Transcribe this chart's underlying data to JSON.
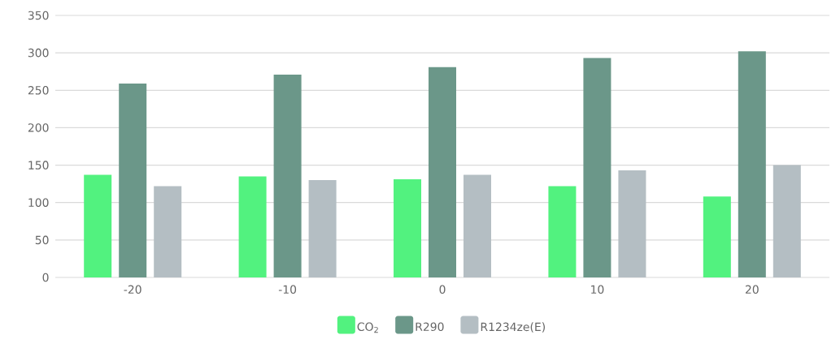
{
  "chart_data": {
    "type": "bar",
    "categories": [
      "-20",
      "-10",
      "0",
      "10",
      "20"
    ],
    "series": [
      {
        "name": "CO$_{2}$",
        "color": "#52f27f",
        "values": [
          137,
          135,
          131,
          122,
          108
        ]
      },
      {
        "name": "R290",
        "color": "#6b9789",
        "values": [
          259,
          271,
          281,
          293,
          302
        ]
      },
      {
        "name": "R1234ze(E)",
        "color": "#b4bec3",
        "values": [
          122,
          130,
          137,
          143,
          150
        ]
      }
    ],
    "ylim": [
      0,
      350
    ],
    "yticks": [
      0,
      50,
      100,
      150,
      200,
      250,
      300,
      350
    ],
    "grid": "y",
    "legend": "bottom"
  }
}
